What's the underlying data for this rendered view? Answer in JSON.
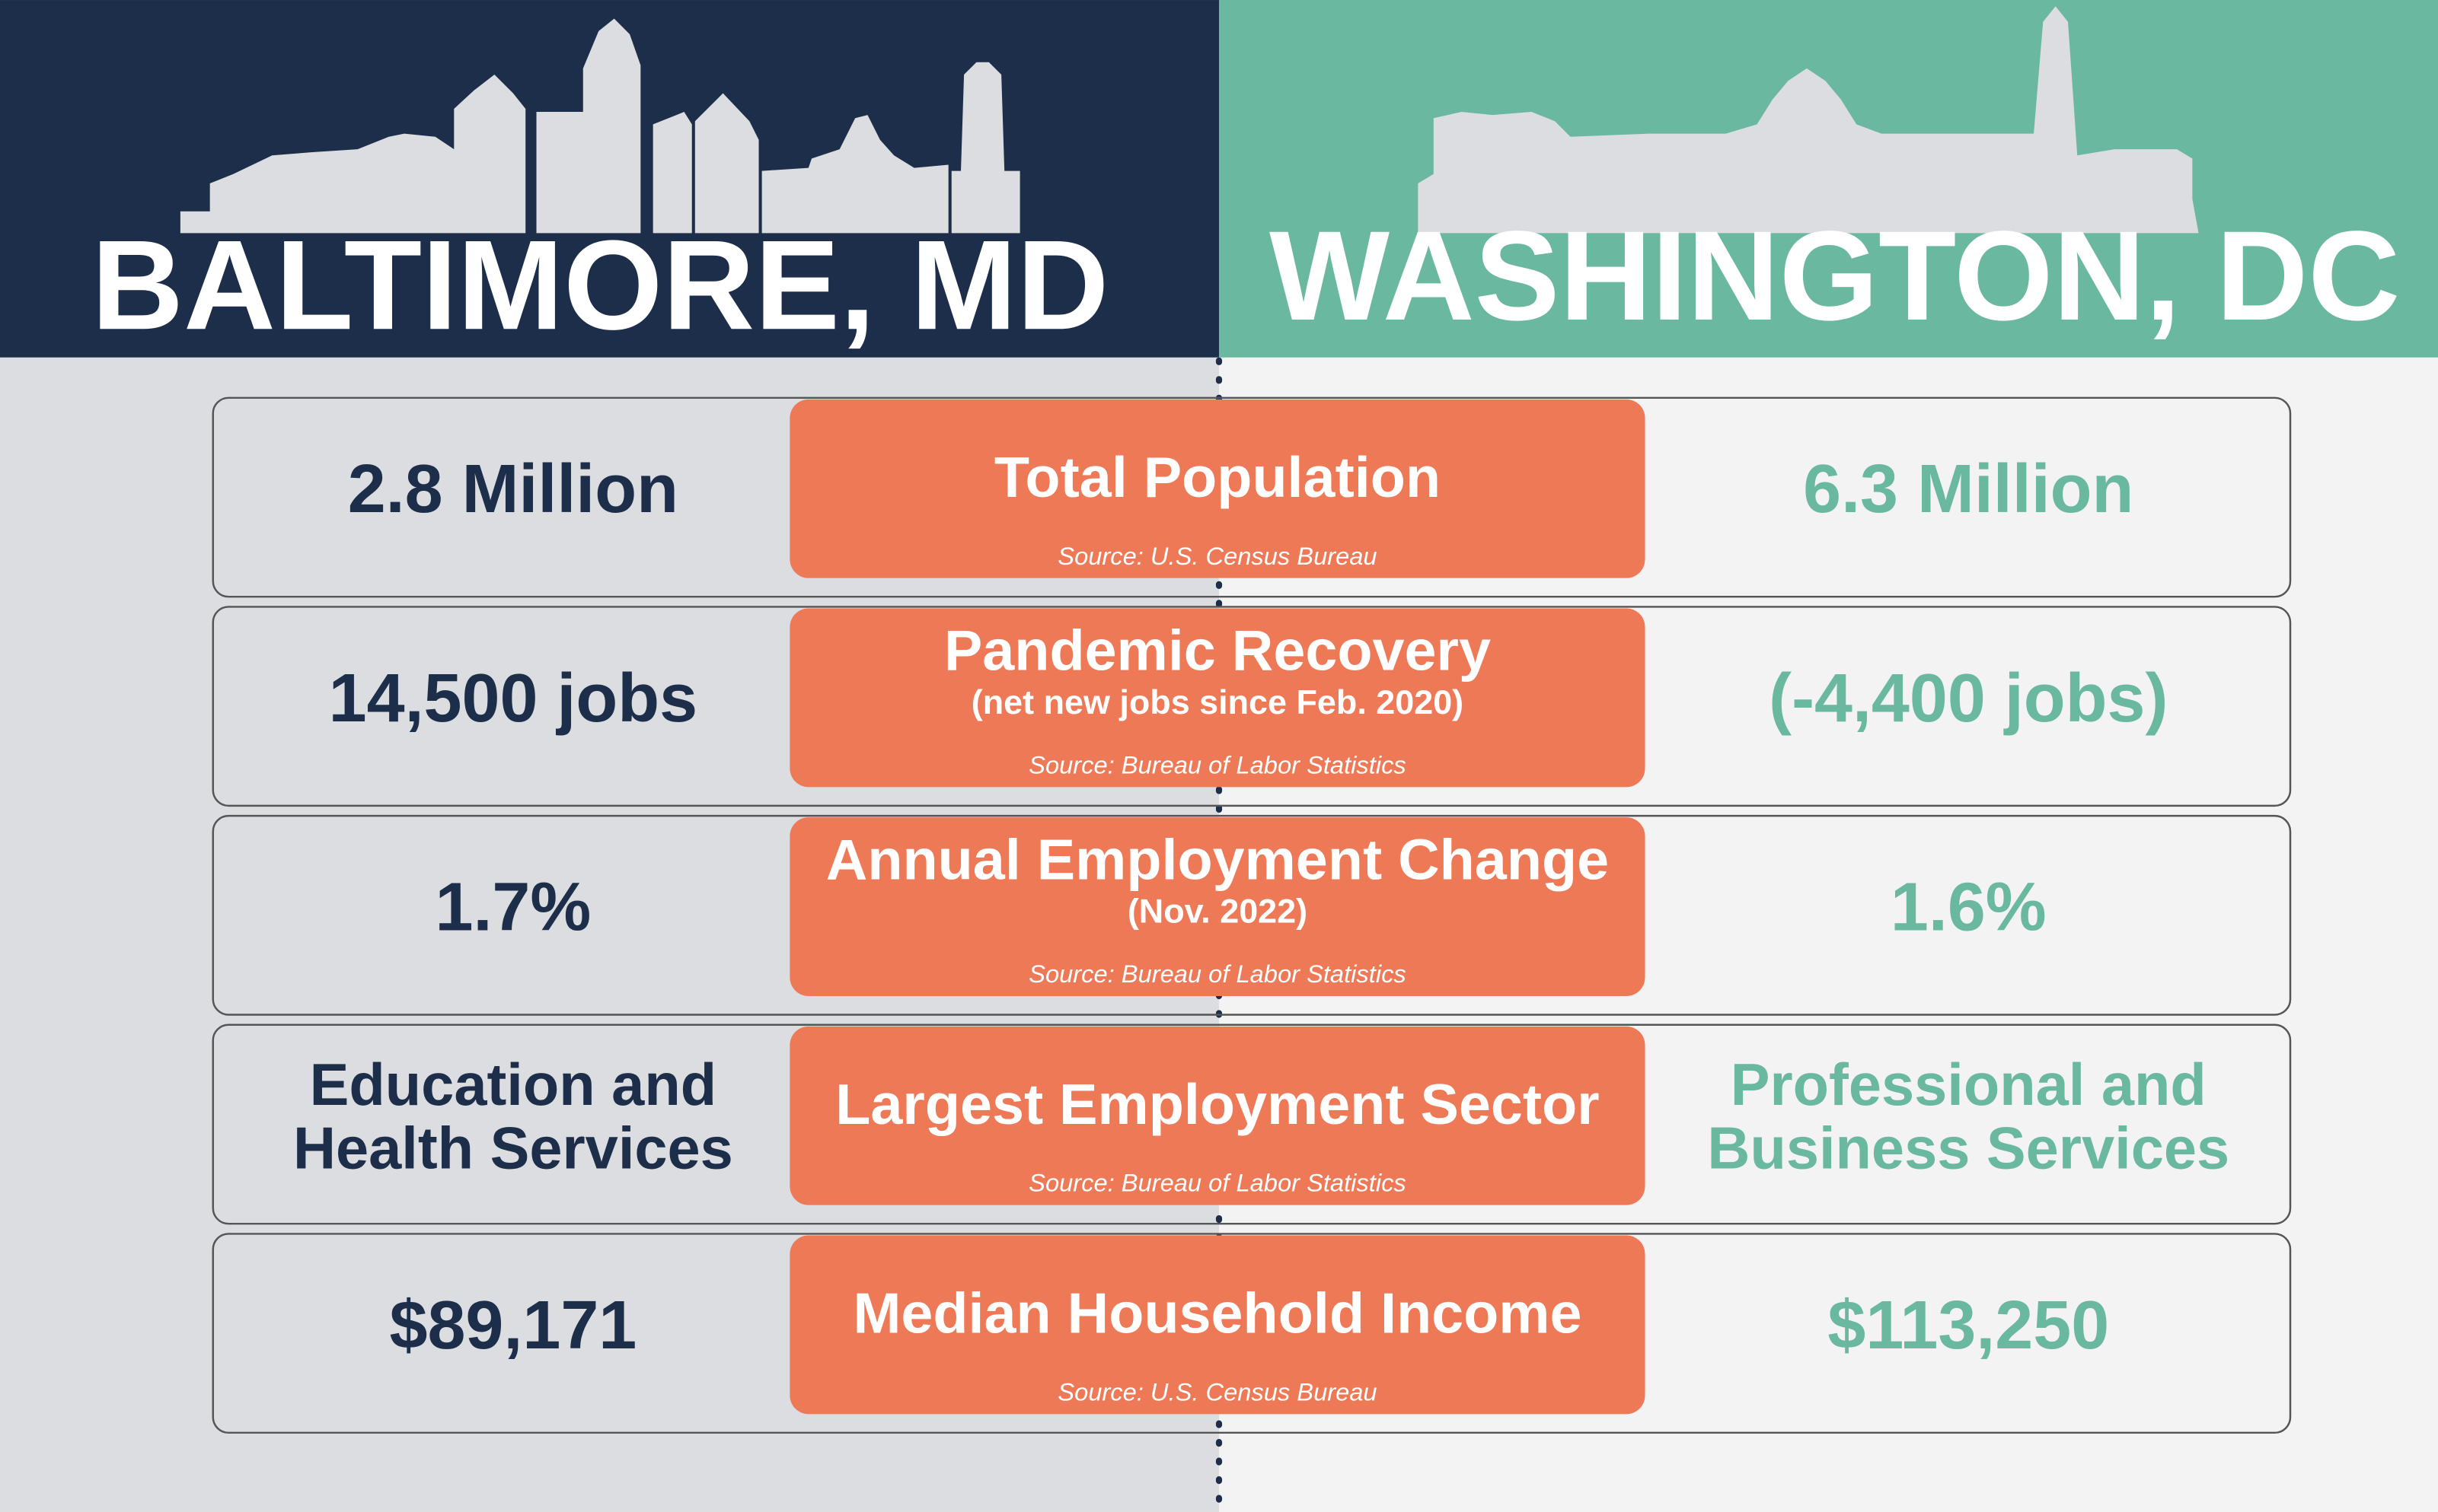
{
  "header": {
    "left": "BALTIMORE, MD",
    "right": "WASHINGTON, DC"
  },
  "rows": [
    {
      "title": "Total Population",
      "source": "Source: U.S. Census Bureau",
      "left": [
        "2.8 Million"
      ],
      "right": [
        "6.3 Million"
      ]
    },
    {
      "title": "Pandemic Recovery",
      "subtitle": "(net new jobs since Feb. 2020)",
      "source": "Source: Bureau of Labor Statistics",
      "left": [
        "14,500 jobs"
      ],
      "right": [
        "(-4,400 jobs)"
      ]
    },
    {
      "title": "Annual Employment Change",
      "subtitle": "(Nov. 2022)",
      "source": "Source: Bureau of Labor Statistics",
      "left": [
        "1.7%"
      ],
      "right": [
        "1.6%"
      ]
    },
    {
      "title": "Largest Employment Sector",
      "source": "Source: Bureau of Labor Statistics",
      "left": [
        "Education and",
        "Health Services"
      ],
      "right": [
        "Professional and",
        "Business Services"
      ]
    },
    {
      "title": "Median Household Income",
      "source": "Source: U.S. Census Bureau",
      "left": [
        "$89,171"
      ],
      "right": [
        "$113,250"
      ]
    }
  ]
}
